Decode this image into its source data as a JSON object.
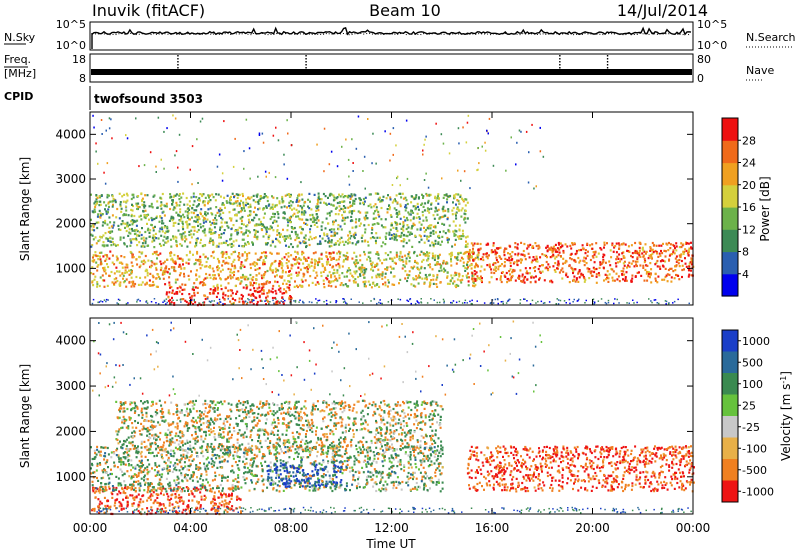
{
  "header": {
    "station": "Inuvik (fitACF)",
    "beam": "Beam 10",
    "date": "14/Jul/2014"
  },
  "noise_panel": {
    "left_label": "N.Sky",
    "right_label": "N.Search",
    "left_ticks": [
      "10^5",
      "10^0"
    ],
    "right_ticks": [
      "10^5",
      "10^0"
    ]
  },
  "freq_panel": {
    "left_label_1": "Freq.",
    "left_label_2": "[MHz]",
    "right_label": "Nave",
    "left_ticks": [
      "18",
      "8"
    ],
    "right_ticks": [
      "80",
      "0"
    ]
  },
  "cpid_panel": {
    "label": "CPID",
    "program": "twofsound 3503"
  },
  "x_axis": {
    "ticks": [
      "00:00",
      "04:00",
      "08:00",
      "12:00",
      "16:00",
      "20:00",
      "00:00"
    ],
    "label": "Time UT"
  },
  "chart_data": [
    {
      "type": "heatmap",
      "variable": "power",
      "xlabel": "Time UT",
      "ylabel": "Slant Range [km]",
      "xlim_hours": [
        0,
        24
      ],
      "ylim_km": [
        180,
        4500
      ],
      "y_ticks": [
        1000,
        2000,
        3000,
        4000
      ],
      "colorbar": {
        "label": "Power [dB]",
        "range": [
          0,
          32
        ],
        "tick_labels": [
          "4",
          "8",
          "12",
          "16",
          "20",
          "24",
          "28"
        ],
        "colors": [
          "#0000ee",
          "#2a5fb0",
          "#3c8a55",
          "#6cb24a",
          "#d4d03c",
          "#f0a020",
          "#f06a1a",
          "#ee1010"
        ]
      },
      "echo_regions": [
        {
          "hours": [
            0.0,
            10.0
          ],
          "range_km": [
            600,
            1400
          ],
          "mean_power_db": 22
        },
        {
          "hours": [
            3.0,
            8.0
          ],
          "range_km": [
            200,
            600
          ],
          "mean_power_db": 30
        },
        {
          "hours": [
            0.0,
            15.0
          ],
          "range_km": [
            1500,
            2700
          ],
          "mean_power_db": 14
        },
        {
          "hours": [
            10.0,
            15.5
          ],
          "range_km": [
            600,
            1400
          ],
          "mean_power_db": 18
        },
        {
          "hours": [
            15.0,
            24.0
          ],
          "range_km": [
            700,
            1600
          ],
          "mean_power_db": 26
        }
      ]
    },
    {
      "type": "heatmap",
      "variable": "velocity",
      "xlabel": "Time UT",
      "ylabel": "Slant Range [km]",
      "xlim_hours": [
        0,
        24
      ],
      "ylim_km": [
        180,
        4500
      ],
      "y_ticks": [
        1000,
        2000,
        3000,
        4000
      ],
      "colorbar": {
        "label": "Velocity [m s^-1]",
        "tick_labels": [
          "1000",
          "500",
          "100",
          "25",
          "-25",
          "-100",
          "-500",
          "-1000"
        ],
        "colors": [
          "#1a3ec8",
          "#2a6a9a",
          "#3a8a50",
          "#66c23c",
          "#c8c8c8",
          "#e8b048",
          "#f08020",
          "#ee1414"
        ]
      },
      "echo_regions": [
        {
          "hours": [
            0.0,
            6.0
          ],
          "range_km": [
            200,
            800
          ],
          "mean_velocity_ms": -300
        },
        {
          "hours": [
            0.0,
            14.0
          ],
          "range_km": [
            700,
            1700
          ],
          "mean_velocity_ms": 80
        },
        {
          "hours": [
            7.0,
            10.0
          ],
          "range_km": [
            800,
            1300
          ],
          "mean_velocity_ms": 800
        },
        {
          "hours": [
            1.0,
            14.0
          ],
          "range_km": [
            1600,
            2700
          ],
          "mean_velocity_ms": 0
        },
        {
          "hours": [
            15.0,
            24.0
          ],
          "range_km": [
            700,
            1700
          ],
          "mean_velocity_ms": -300
        }
      ]
    }
  ]
}
